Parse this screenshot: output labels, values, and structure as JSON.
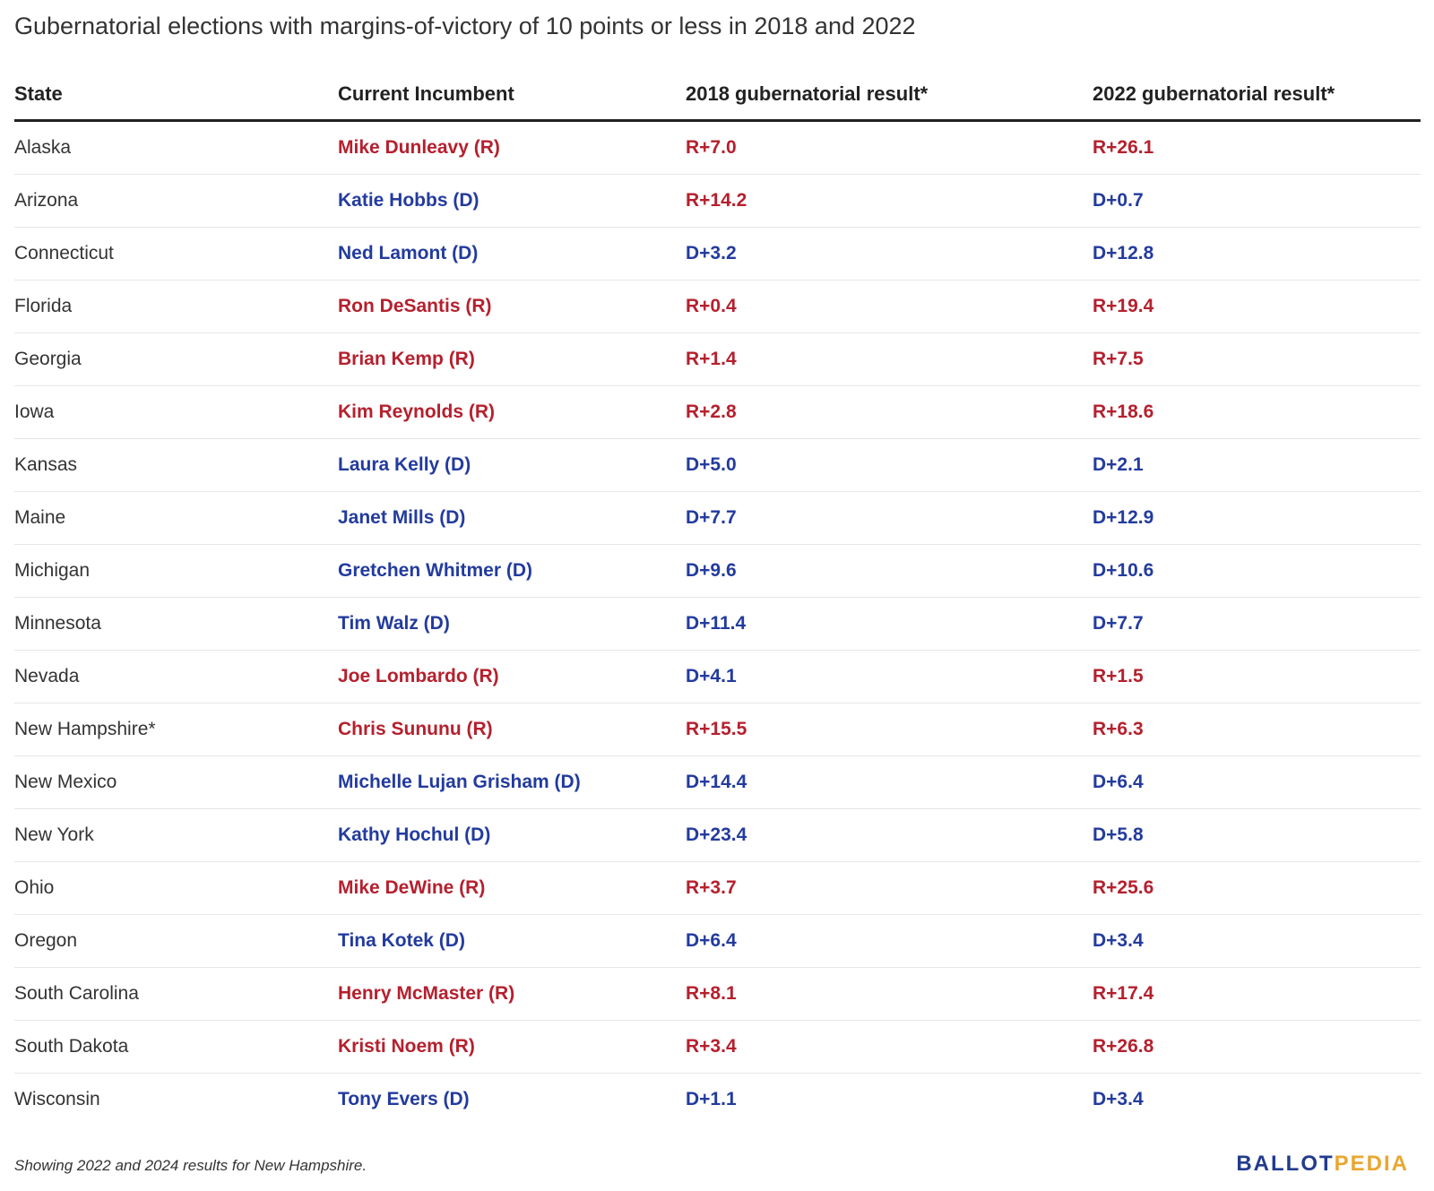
{
  "chart_data": {
    "type": "table",
    "title": "Gubernatorial elections with margins-of-victory of 10 points or less in 2018 and 2022",
    "columns": [
      "State",
      "Current Incumbent",
      "2018 gubernatorial result*",
      "2022 gubernatorial result*"
    ],
    "rows": [
      {
        "state": "Alaska",
        "incumbent": "Mike Dunleavy (R)",
        "r2018": "R+7.0",
        "r2022": "R+26.1"
      },
      {
        "state": "Arizona",
        "incumbent": "Katie Hobbs (D)",
        "r2018": "R+14.2",
        "r2022": "D+0.7"
      },
      {
        "state": "Connecticut",
        "incumbent": "Ned Lamont (D)",
        "r2018": "D+3.2",
        "r2022": "D+12.8"
      },
      {
        "state": "Florida",
        "incumbent": "Ron DeSantis (R)",
        "r2018": "R+0.4",
        "r2022": "R+19.4"
      },
      {
        "state": "Georgia",
        "incumbent": "Brian Kemp (R)",
        "r2018": "R+1.4",
        "r2022": "R+7.5"
      },
      {
        "state": "Iowa",
        "incumbent": "Kim Reynolds (R)",
        "r2018": "R+2.8",
        "r2022": "R+18.6"
      },
      {
        "state": "Kansas",
        "incumbent": "Laura Kelly (D)",
        "r2018": "D+5.0",
        "r2022": "D+2.1"
      },
      {
        "state": "Maine",
        "incumbent": "Janet Mills (D)",
        "r2018": "D+7.7",
        "r2022": "D+12.9"
      },
      {
        "state": "Michigan",
        "incumbent": "Gretchen Whitmer (D)",
        "r2018": "D+9.6",
        "r2022": "D+10.6"
      },
      {
        "state": "Minnesota",
        "incumbent": "Tim Walz (D)",
        "r2018": "D+11.4",
        "r2022": "D+7.7"
      },
      {
        "state": "Nevada",
        "incumbent": "Joe Lombardo (R)",
        "r2018": "D+4.1",
        "r2022": "R+1.5"
      },
      {
        "state": "New Hampshire*",
        "incumbent": "Chris Sununu (R)",
        "r2018": "R+15.5",
        "r2022": "R+6.3"
      },
      {
        "state": "New Mexico",
        "incumbent": "Michelle Lujan Grisham (D)",
        "r2018": "D+14.4",
        "r2022": "D+6.4"
      },
      {
        "state": "New York",
        "incumbent": "Kathy Hochul (D)",
        "r2018": "D+23.4",
        "r2022": "D+5.8"
      },
      {
        "state": "Ohio",
        "incumbent": "Mike DeWine (R)",
        "r2018": "R+3.7",
        "r2022": "R+25.6"
      },
      {
        "state": "Oregon",
        "incumbent": "Tina Kotek (D)",
        "r2018": "D+6.4",
        "r2022": "D+3.4"
      },
      {
        "state": "South Carolina",
        "incumbent": "Henry McMaster (R)",
        "r2018": "R+8.1",
        "r2022": "R+17.4"
      },
      {
        "state": "South Dakota",
        "incumbent": "Kristi Noem (R)",
        "r2018": "R+3.4",
        "r2022": "R+26.8"
      },
      {
        "state": "Wisconsin",
        "incumbent": "Tony Evers (D)",
        "r2018": "D+1.1",
        "r2022": "D+3.4"
      }
    ],
    "footnote": "Showing 2022 and 2024 results for New Hampshire.",
    "colors": {
      "republican": "#b5202e",
      "democrat": "#233b9e"
    }
  },
  "logo": {
    "part1": "BALLOT",
    "part2": "PEDIA",
    "color1": "#233b8e",
    "color2": "#e9a730"
  }
}
